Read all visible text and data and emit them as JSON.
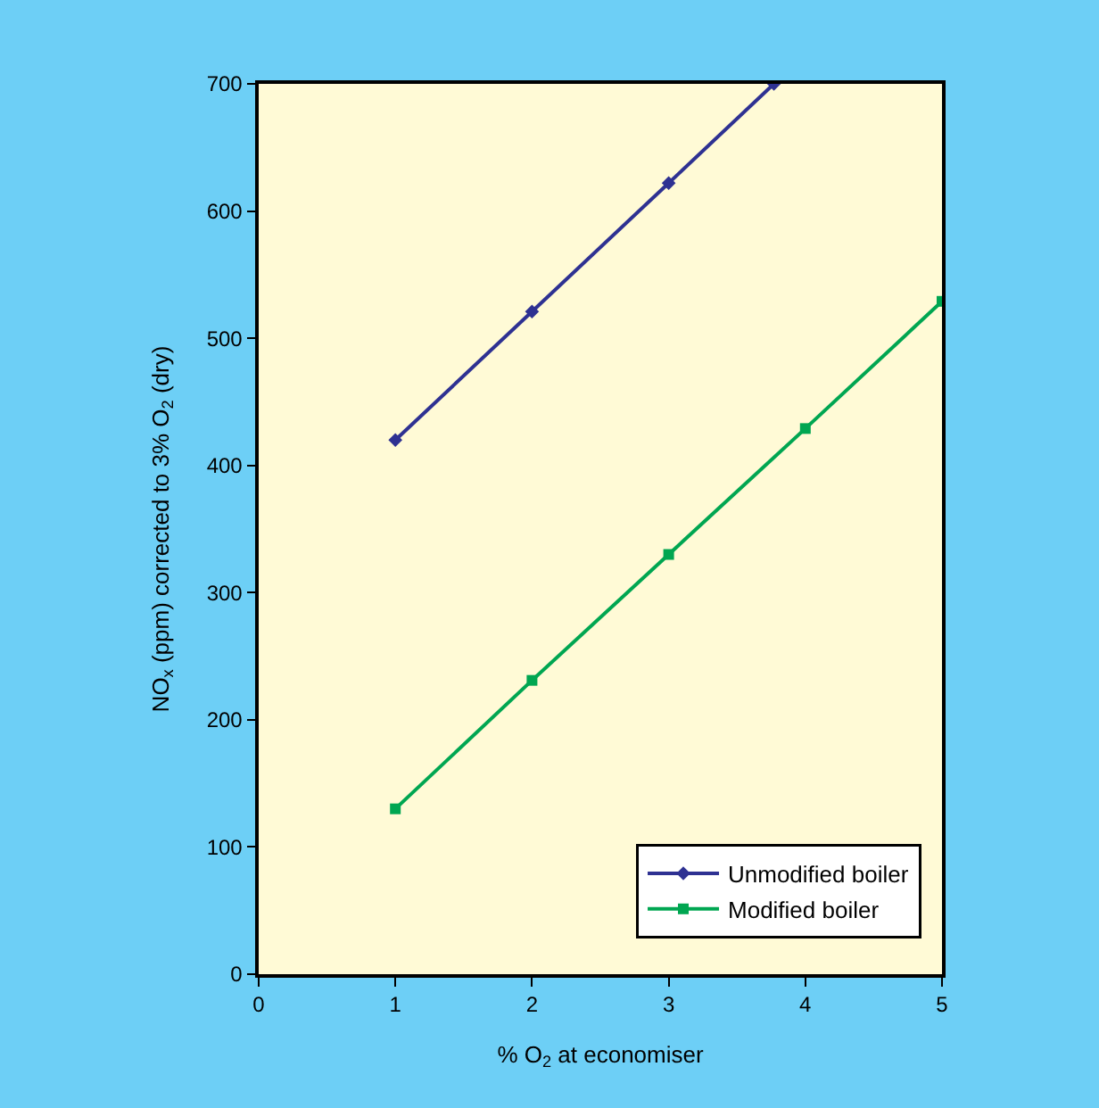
{
  "chart_data": {
    "type": "line",
    "xlabel": "% O$_{2}$ at economiser",
    "ylabel": "NO$_{x}$ (ppm) corrected to 3% O$_{2}$ (dry)",
    "xlim": [
      0,
      5
    ],
    "xticks": [
      0,
      1,
      2,
      3,
      4,
      5
    ],
    "ylim": [
      0,
      700
    ],
    "yticks": [
      0,
      100,
      200,
      300,
      400,
      500,
      600,
      700
    ],
    "grid": false,
    "legend": "bottom right",
    "series": [
      {
        "name": "Unmodified boiler",
        "color": "#2e3192",
        "marker": "diamond",
        "x": [
          1,
          2,
          3,
          3.77
        ],
        "values": [
          420,
          521,
          622,
          700
        ]
      },
      {
        "name": "Modified boiler",
        "color": "#00a651",
        "marker": "square",
        "x": [
          1,
          2,
          3,
          4,
          5
        ],
        "values": [
          130,
          231,
          330,
          429,
          529
        ]
      }
    ]
  }
}
